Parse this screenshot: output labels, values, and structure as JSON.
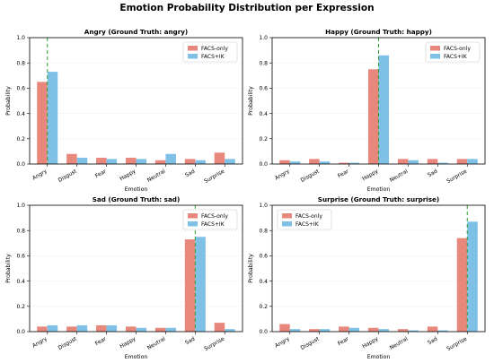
{
  "figure": {
    "title": "Emotion Probability Distribution per Expression"
  },
  "colors": {
    "FACS-only": "#e8877c",
    "FACS+IK": "#7fc0e6",
    "ground_truth_line": "#2ca02c"
  },
  "chart_data": [
    {
      "type": "bar",
      "title": "Angry (Ground Truth: angry)",
      "xlabel": "Emotion",
      "ylabel": "Probability",
      "ylim": [
        0,
        1.0
      ],
      "yticks": [
        0.0,
        0.2,
        0.4,
        0.6,
        0.8,
        1.0
      ],
      "ytick_labels": [
        "0.0",
        "0.2",
        "0.4",
        "0.6",
        "0.8",
        "1.0"
      ],
      "grid": "y",
      "legend_position": "upper right",
      "ground_truth": "Angry",
      "categories": [
        "Angry",
        "Disgust",
        "Fear",
        "Happy",
        "Neutral",
        "Sad",
        "Surprise"
      ],
      "series": [
        {
          "name": "FACS-only",
          "values": [
            0.65,
            0.08,
            0.05,
            0.05,
            0.03,
            0.04,
            0.09
          ]
        },
        {
          "name": "FACS+IK",
          "values": [
            0.73,
            0.05,
            0.04,
            0.04,
            0.08,
            0.03,
            0.04
          ]
        }
      ]
    },
    {
      "type": "bar",
      "title": "Happy (Ground Truth: happy)",
      "xlabel": "Emotion",
      "ylabel": "Probability",
      "ylim": [
        0,
        1.0
      ],
      "yticks": [
        0.0,
        0.2,
        0.4,
        0.6,
        0.8,
        1.0
      ],
      "ytick_labels": [
        "0.0",
        "0.2",
        "0.4",
        "0.6",
        "0.8",
        "1.0"
      ],
      "grid": "y",
      "legend_position": "upper right",
      "ground_truth": "Happy",
      "categories": [
        "Angry",
        "Disgust",
        "Fear",
        "Happy",
        "Neutral",
        "Sad",
        "Surprise"
      ],
      "series": [
        {
          "name": "FACS-only",
          "values": [
            0.03,
            0.04,
            0.01,
            0.75,
            0.04,
            0.04,
            0.04
          ]
        },
        {
          "name": "FACS+IK",
          "values": [
            0.02,
            0.02,
            0.01,
            0.86,
            0.03,
            0.01,
            0.04
          ]
        }
      ]
    },
    {
      "type": "bar",
      "title": "Sad (Ground Truth: sad)",
      "xlabel": "Emotion",
      "ylabel": "Probability",
      "ylim": [
        0,
        1.0
      ],
      "yticks": [
        0.0,
        0.2,
        0.4,
        0.6,
        0.8,
        1.0
      ],
      "ytick_labels": [
        "0.0",
        "0.2",
        "0.4",
        "0.6",
        "0.8",
        "1.0"
      ],
      "grid": "y",
      "legend_position": "upper right",
      "ground_truth": "Sad",
      "categories": [
        "Angry",
        "Disgust",
        "Fear",
        "Happy",
        "Neutral",
        "Sad",
        "Surprise"
      ],
      "series": [
        {
          "name": "FACS-only",
          "values": [
            0.04,
            0.04,
            0.05,
            0.04,
            0.03,
            0.73,
            0.07
          ]
        },
        {
          "name": "FACS+IK",
          "values": [
            0.05,
            0.05,
            0.05,
            0.03,
            0.03,
            0.75,
            0.02
          ]
        }
      ]
    },
    {
      "type": "bar",
      "title": "Surprise (Ground Truth: surprise)",
      "xlabel": "Emotion",
      "ylabel": "Probability",
      "ylim": [
        0,
        1.0
      ],
      "yticks": [
        0.0,
        0.2,
        0.4,
        0.6,
        0.8,
        1.0
      ],
      "ytick_labels": [
        "0.0",
        "0.2",
        "0.4",
        "0.6",
        "0.8",
        "1.0"
      ],
      "grid": "y",
      "legend_position": "upper left",
      "ground_truth": "Surprise",
      "categories": [
        "Angry",
        "Disgust",
        "Fear",
        "Happy",
        "Neutral",
        "Sad",
        "Surprise"
      ],
      "series": [
        {
          "name": "FACS-only",
          "values": [
            0.06,
            0.02,
            0.04,
            0.03,
            0.02,
            0.04,
            0.74
          ]
        },
        {
          "name": "FACS+IK",
          "values": [
            0.02,
            0.02,
            0.03,
            0.02,
            0.01,
            0.01,
            0.87
          ]
        }
      ]
    }
  ]
}
